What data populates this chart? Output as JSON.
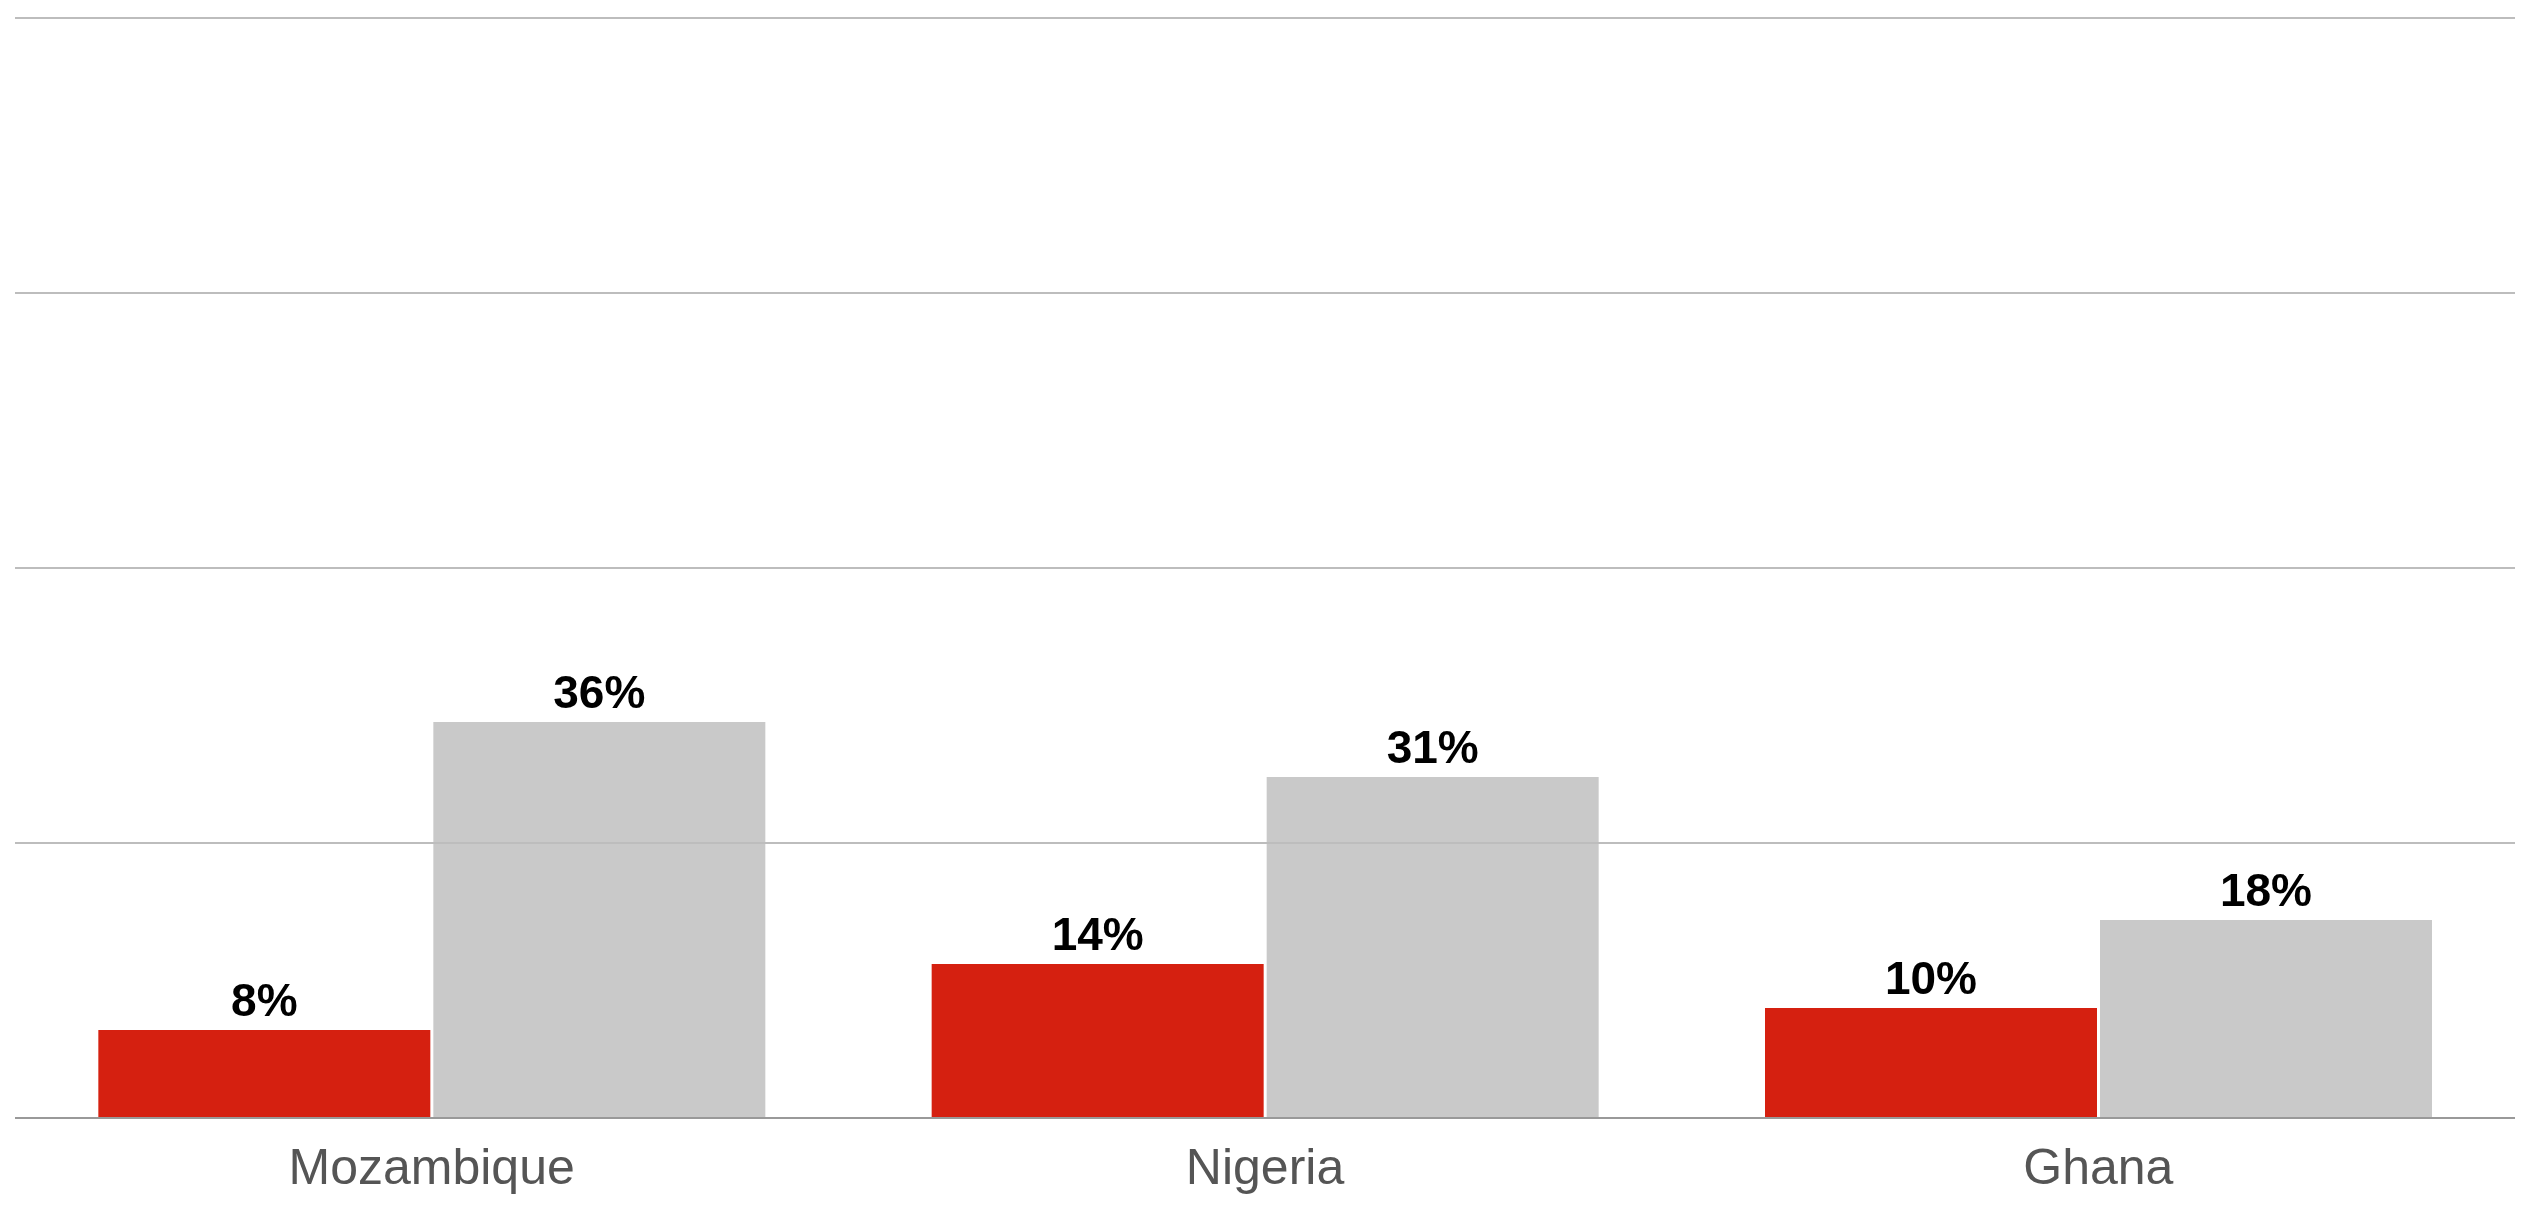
{
  "chart_data": {
    "type": "bar",
    "categories": [
      "Mozambique",
      "Nigeria",
      "Ghana"
    ],
    "series": [
      {
        "color": "#d52010",
        "values": [
          8,
          14,
          10
        ],
        "value_labels": [
          "8%",
          "14%",
          "10%"
        ]
      },
      {
        "color": "#c9c9c9",
        "values": [
          36,
          31,
          18
        ],
        "value_labels": [
          "36%",
          "31%",
          "18%"
        ]
      }
    ],
    "ylim": [
      0,
      100
    ],
    "yticks": [
      {
        "value": 0,
        "label": null
      },
      {
        "value": 25,
        "label": null
      },
      {
        "value": 50,
        "label": null
      },
      {
        "value": 75,
        "label": null
      },
      {
        "value": 100,
        "label": null
      }
    ],
    "grid": "y",
    "tick_labels": "x",
    "legend": false
  }
}
